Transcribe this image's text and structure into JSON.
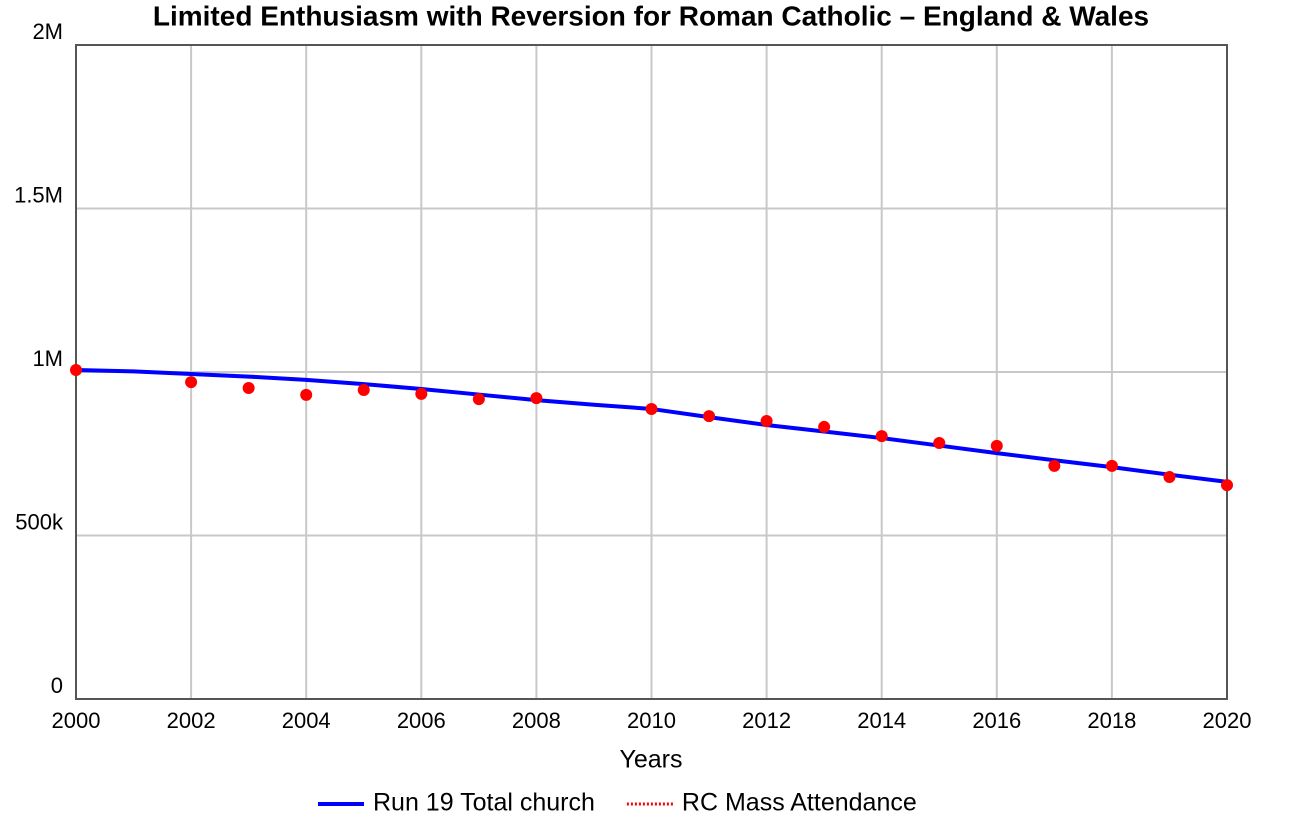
{
  "chart_data": {
    "type": "line",
    "title": "Limited Enthusiasm with Reversion for Roman Catholic – England & Wales",
    "x_label": "Years",
    "xlim": [
      2000,
      2020
    ],
    "xticks": [
      2000,
      2002,
      2004,
      2006,
      2008,
      2010,
      2012,
      2014,
      2016,
      2018,
      2020
    ],
    "ylim": [
      0,
      2000000
    ],
    "yticks": [
      0,
      {
        "value": 500000,
        "label": "500k"
      },
      {
        "value": 1000000,
        "label": "1M"
      },
      {
        "value": 1500000,
        "label": "1.5M"
      },
      {
        "value": 2000000,
        "label": "2M"
      }
    ],
    "grid": true,
    "legend": "bottom",
    "series": [
      {
        "name": "Run 19 Total church",
        "color": "#0000ff",
        "style": "line",
        "x": [
          2000,
          2001,
          2002,
          2003,
          2004,
          2005,
          2006,
          2007,
          2008,
          2009,
          2010,
          2011,
          2012,
          2013,
          2014,
          2015,
          2016,
          2017,
          2018,
          2019,
          2020
        ],
        "values": [
          1006000,
          1002000,
          994000,
          986000,
          976000,
          963000,
          948000,
          931000,
          914000,
          900000,
          887000,
          862000,
          838000,
          818000,
          798000,
          775000,
          752000,
          730000,
          709000,
          686000,
          664000
        ]
      },
      {
        "name": "RC Mass Attendance",
        "color": "#ff0000",
        "style": "dots",
        "x": [
          2000,
          2002,
          2003,
          2004,
          2005,
          2006,
          2007,
          2008,
          2010,
          2011,
          2012,
          2013,
          2014,
          2015,
          2016,
          2017,
          2018,
          2019,
          2020
        ],
        "values": [
          1006000,
          969000,
          951000,
          930000,
          945000,
          933000,
          917000,
          920000,
          887000,
          865000,
          850000,
          832000,
          804000,
          783000,
          774000,
          713000,
          713000,
          679000,
          654000
        ]
      }
    ]
  }
}
